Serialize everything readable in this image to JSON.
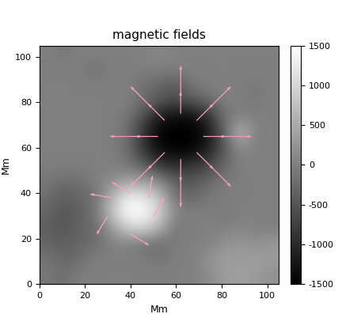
{
  "chart_data": {
    "type": "heatmap",
    "title": "magnetic fields",
    "x_label": "Mm",
    "y_label": "Mm",
    "xlim": [
      0,
      105
    ],
    "ylim": [
      0,
      105
    ],
    "xticks": [
      0,
      20,
      40,
      60,
      80,
      100
    ],
    "yticks": [
      0,
      20,
      40,
      60,
      80,
      100
    ],
    "cells": [
      [
        -100,
        -200,
        0,
        0,
        0,
        0,
        0,
        0,
        0,
        0,
        100,
        300,
        400,
        300,
        200
      ],
      [
        -100,
        -300,
        -200,
        0,
        0,
        0,
        0,
        -100,
        0,
        0,
        200,
        400,
        300,
        400,
        300
      ],
      [
        -300,
        -400,
        -300,
        -200,
        0,
        0,
        -200,
        -300,
        0,
        0,
        0,
        200,
        300,
        200,
        300
      ],
      [
        -400,
        -500,
        -300,
        -300,
        300,
        900,
        1000,
        600,
        -200,
        0,
        0,
        0,
        100,
        0,
        0
      ],
      [
        -300,
        -500,
        -400,
        -100,
        800,
        1500,
        1500,
        1000,
        100,
        0,
        0,
        -100,
        0,
        0,
        0
      ],
      [
        -200,
        -400,
        -300,
        -200,
        600,
        1300,
        1200,
        800,
        -200,
        -300,
        -100,
        0,
        0,
        0,
        0
      ],
      [
        -100,
        -200,
        -200,
        0,
        100,
        400,
        300,
        100,
        -400,
        -500,
        -300,
        -100,
        0,
        0,
        0
      ],
      [
        0,
        0,
        0,
        0,
        0,
        -100,
        -400,
        -900,
        -1000,
        -900,
        -700,
        -300,
        0,
        0,
        0
      ],
      [
        0,
        0,
        0,
        0,
        0,
        -200,
        -900,
        -1400,
        -1500,
        -1500,
        -1200,
        -500,
        100,
        0,
        0
      ],
      [
        0,
        0,
        0,
        0,
        0,
        -200,
        -900,
        -1500,
        -1500,
        -1500,
        -1300,
        -400,
        800,
        0,
        0
      ],
      [
        0,
        0,
        0,
        0,
        0,
        -100,
        -600,
        -1200,
        -1400,
        -1400,
        -1000,
        -200,
        0,
        0,
        0
      ],
      [
        0,
        0,
        0,
        0,
        0,
        0,
        -200,
        -500,
        -600,
        -500,
        -300,
        0,
        0,
        -100,
        0
      ],
      [
        0,
        0,
        0,
        0,
        0,
        0,
        -200,
        -300,
        -500,
        -100,
        0,
        0,
        0,
        -100,
        0
      ],
      [
        0,
        0,
        0,
        -200,
        0,
        0,
        0,
        0,
        0,
        0,
        0,
        0,
        0,
        0,
        0
      ],
      [
        0,
        -100,
        0,
        0,
        0,
        0,
        0,
        100,
        0,
        0,
        0,
        0,
        0,
        0,
        0
      ]
    ],
    "colorbar": {
      "range": [
        -1500,
        1500
      ],
      "ticks": [
        -1500,
        -1000,
        -500,
        0,
        500,
        1000,
        1500
      ]
    },
    "vectors": {
      "color": "#ff9ec8",
      "x": [
        72,
        52,
        62,
        62,
        69,
        55,
        69,
        55,
        80,
        44,
        62,
        62,
        75,
        49,
        75,
        49,
        50,
        40,
        30,
        40,
        48,
        32
      ],
      "y": [
        65,
        65,
        75,
        55,
        72,
        72,
        58,
        58,
        65,
        65,
        83,
        47,
        78,
        78,
        52,
        52,
        30,
        40,
        30,
        22,
        38,
        38
      ],
      "u": [
        600,
        -600,
        0,
        0,
        450,
        -450,
        450,
        -450,
        800,
        -800,
        0,
        0,
        550,
        -550,
        550,
        -550,
        300,
        -500,
        -300,
        500,
        100,
        -600
      ],
      "v": [
        0,
        0,
        600,
        -600,
        450,
        450,
        -450,
        -450,
        0,
        0,
        800,
        -800,
        550,
        550,
        -550,
        -550,
        500,
        300,
        -500,
        -300,
        600,
        100
      ]
    }
  }
}
